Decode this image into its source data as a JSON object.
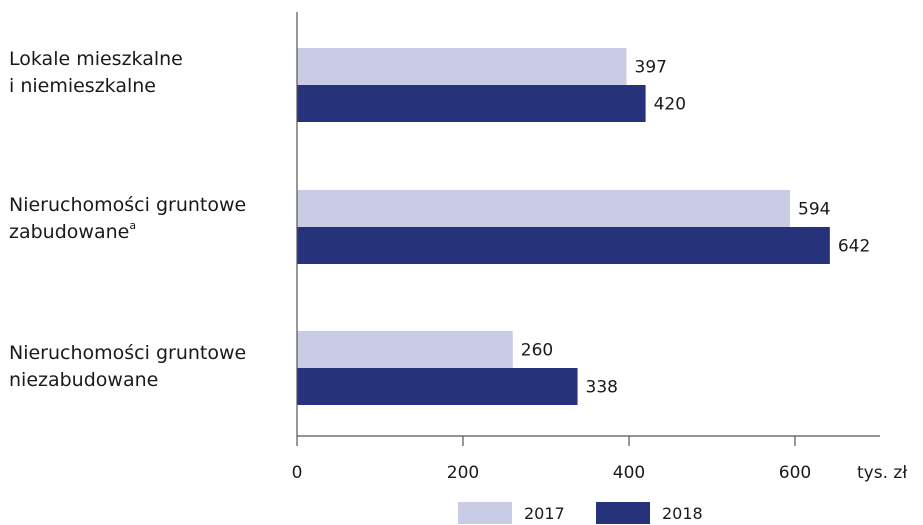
{
  "chart_data": {
    "type": "bar",
    "orientation": "horizontal",
    "categories": [
      "Lokale mieszkalne i niemieszkalne",
      "Nieruchomości gruntowe zabudowane",
      "Nieruchomości gruntowe niezabudowane"
    ],
    "category_lines": [
      [
        "Lokale mieszkalne",
        "i niemieszkalne"
      ],
      [
        "Nieruchomości gruntowe",
        "zabudowane"
      ],
      [
        "Nieruchomości gruntowe",
        "niezabudowane"
      ]
    ],
    "category_footnotes": [
      "",
      "a",
      ""
    ],
    "series": [
      {
        "name": "2017",
        "values": [
          397,
          594,
          260
        ],
        "color": "#cacbe4"
      },
      {
        "name": "2018",
        "values": [
          420,
          642,
          338
        ],
        "color": "#26337a"
      }
    ],
    "xticks": [
      0,
      200,
      400,
      600
    ],
    "xlim": [
      0,
      700
    ],
    "xunit": "tys. zł",
    "grid": false,
    "legend_position": "bottom"
  }
}
